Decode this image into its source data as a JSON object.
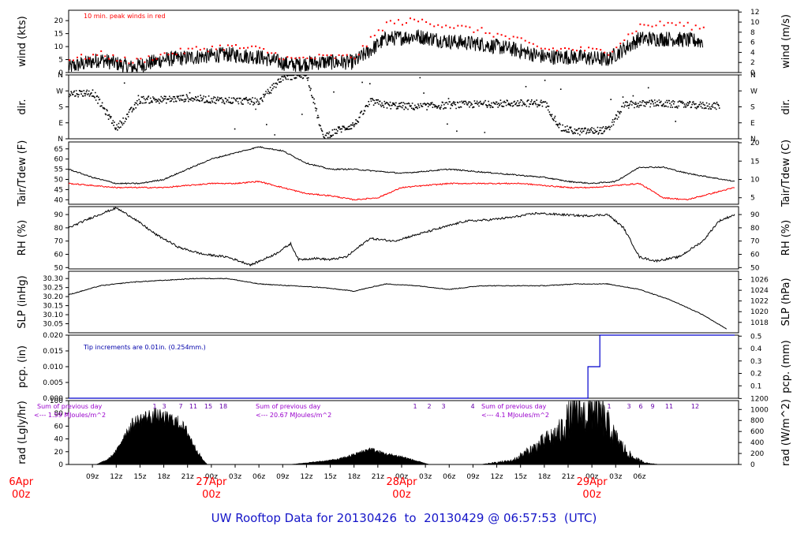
{
  "chart_data": [
    {
      "type": "line",
      "name": "wind",
      "ylabel_left": "wind (kts)",
      "ylabel_right": "wind (m/s)",
      "ylim_left": [
        0,
        24
      ],
      "ylim_right": [
        0,
        12.35
      ],
      "yticks_left": [
        0,
        5,
        10,
        15,
        20
      ],
      "yticks_right": [
        0,
        2,
        4,
        6,
        8,
        10,
        12
      ],
      "annotation": "10 min. peak winds in red",
      "series": [
        {
          "name": "wind speed (kts)",
          "color": "#000000",
          "x_hours": [
            0,
            4,
            8,
            12,
            16,
            20,
            24,
            28,
            32,
            36,
            40,
            44,
            48,
            52,
            56,
            60,
            64,
            68,
            72,
            76,
            80
          ],
          "values": [
            2,
            5,
            2,
            5,
            6,
            7,
            6,
            3,
            4,
            4,
            13,
            14,
            12,
            11,
            9,
            6,
            6,
            5,
            13,
            13,
            12
          ]
        },
        {
          "name": "10 min. peak winds",
          "color": "#ff0000",
          "x_hours": [
            0,
            4,
            8,
            12,
            16,
            20,
            24,
            28,
            32,
            36,
            40,
            44,
            48,
            52,
            56,
            60,
            64,
            68,
            72,
            76,
            80
          ],
          "values": [
            5,
            7,
            4,
            7,
            9,
            10,
            9,
            5,
            6,
            6,
            19,
            20,
            18,
            16,
            13,
            9,
            9,
            8,
            18,
            19,
            17
          ]
        }
      ]
    },
    {
      "type": "scatter",
      "name": "direction",
      "ylabel_left": "dir.",
      "ylabel_right": "dir.",
      "ylim": [
        0,
        360
      ],
      "yticks_left": [
        "N",
        "E",
        "S",
        "W",
        "N"
      ],
      "yticks_right": [
        "N",
        "E",
        "S",
        "W",
        "N"
      ],
      "series": [
        {
          "name": "wind direction (deg)",
          "color": "#000000",
          "x_hours": [
            0,
            3,
            6,
            9,
            12,
            15,
            18,
            21,
            24,
            27,
            30,
            32,
            34,
            36,
            38,
            40,
            44,
            48,
            52,
            56,
            60,
            62,
            64,
            66,
            68,
            70,
            74,
            78,
            82
          ],
          "values": [
            255,
            260,
            60,
            220,
            220,
            230,
            220,
            215,
            210,
            350,
            360,
            10,
            50,
            80,
            210,
            190,
            180,
            190,
            195,
            200,
            200,
            60,
            40,
            45,
            50,
            190,
            200,
            190,
            185
          ]
        }
      ]
    },
    {
      "type": "line",
      "name": "temperature",
      "ylabel_left": "Tair/Tdew (F)",
      "ylabel_right": "Tair/Tdew (C)",
      "ylim_left": [
        37.8,
        68.4
      ],
      "ylim_right": [
        3.222,
        20.222
      ],
      "yticks_left": [
        40,
        45,
        50,
        55,
        60,
        65
      ],
      "yticks_right": [
        5,
        10,
        15,
        20
      ],
      "series": [
        {
          "name": "Tair (F)",
          "color": "#000000",
          "x_hours": [
            0,
            3,
            6,
            9,
            12,
            15,
            18,
            21,
            24,
            27,
            30,
            33,
            36,
            39,
            42,
            45,
            48,
            51,
            54,
            57,
            60,
            63,
            66,
            69,
            72,
            75,
            78,
            81,
            84
          ],
          "values": [
            55,
            51,
            48,
            48,
            50,
            55,
            60,
            63,
            66,
            64,
            58,
            55,
            55,
            54,
            53,
            54,
            55,
            54,
            53,
            52,
            51,
            49,
            48,
            49,
            56,
            56,
            53,
            51,
            49
          ]
        },
        {
          "name": "Tdew (F)",
          "color": "#ff0000",
          "x_hours": [
            0,
            3,
            6,
            9,
            12,
            15,
            18,
            21,
            24,
            27,
            30,
            33,
            36,
            39,
            42,
            45,
            48,
            51,
            54,
            57,
            60,
            63,
            66,
            69,
            72,
            75,
            78,
            81,
            84
          ],
          "values": [
            48,
            47,
            46,
            46,
            46,
            47,
            48,
            48,
            49,
            46,
            43,
            42,
            40,
            41,
            46,
            47,
            48,
            48,
            48,
            48,
            47,
            46,
            46,
            47,
            48,
            41,
            40,
            43,
            46
          ]
        }
      ]
    },
    {
      "type": "line",
      "name": "rh",
      "ylabel_left": "RH (%)",
      "ylabel_right": "RH (%)",
      "ylim": [
        49,
        96
      ],
      "yticks_left": [
        50,
        60,
        70,
        80,
        90
      ],
      "yticks_right": [
        50,
        60,
        70,
        80,
        90
      ],
      "series": [
        {
          "name": "RH (%)",
          "color": "#000000",
          "x_hours": [
            0,
            3,
            6,
            8,
            11,
            14,
            17,
            20,
            23,
            26,
            28,
            29,
            31,
            33,
            35,
            38,
            41,
            44,
            47,
            50,
            53,
            56,
            59,
            62,
            65,
            68,
            70,
            72,
            74,
            77,
            80,
            82,
            84
          ],
          "values": [
            80,
            88,
            95,
            88,
            75,
            65,
            60,
            58,
            52,
            60,
            68,
            56,
            57,
            56,
            58,
            72,
            70,
            75,
            80,
            85,
            86,
            88,
            91,
            90,
            89,
            90,
            80,
            58,
            55,
            58,
            70,
            85,
            90
          ]
        }
      ]
    },
    {
      "type": "line",
      "name": "slp",
      "ylabel_left": "SLP (inHg)",
      "ylabel_right": "SLP (hPa)",
      "ylim_left": [
        30.0,
        30.34
      ],
      "ylim_right": [
        1016.05,
        1027.56
      ],
      "yticks_left": [
        30.05,
        30.1,
        30.15,
        30.2,
        30.25,
        30.3
      ],
      "yticks_right": [
        1018,
        1020,
        1022,
        1024,
        1026
      ],
      "series": [
        {
          "name": "SLP (inHg)",
          "color": "#000000",
          "x_hours": [
            0,
            4,
            8,
            12,
            16,
            20,
            24,
            28,
            32,
            36,
            40,
            44,
            48,
            52,
            56,
            60,
            64,
            68,
            72,
            76,
            80,
            83
          ],
          "values": [
            30.21,
            30.26,
            30.28,
            30.29,
            30.3,
            30.3,
            30.27,
            30.26,
            30.25,
            30.23,
            30.27,
            30.26,
            30.24,
            30.26,
            30.26,
            30.26,
            30.27,
            30.27,
            30.24,
            30.18,
            30.1,
            30.02
          ]
        }
      ]
    },
    {
      "type": "line",
      "name": "precip",
      "ylabel_left": "pcp. (in)",
      "ylabel_right": "pcp. (mm)",
      "ylim_left": [
        0,
        0.02
      ],
      "ylim_right": [
        0,
        0.508
      ],
      "yticks_left": [
        "0.000",
        "0.005",
        "0.010",
        "0.015",
        "0.020"
      ],
      "yticks_right": [
        0.1,
        0.2,
        0.3,
        0.4,
        0.5
      ],
      "annotation": "Tip increments are 0.01in. (0.254mm.)",
      "series": [
        {
          "name": "cumulative precipitation (in)",
          "color": "#0000cc",
          "x_hours": [
            0,
            65.5,
            65.5,
            67,
            67,
            84
          ],
          "values": [
            0,
            0,
            0.01,
            0.01,
            0.02,
            0.02
          ]
        }
      ]
    },
    {
      "type": "area",
      "name": "radiation",
      "ylabel_left": "rad (Lgly/hr)",
      "ylabel_right": "rad (W/m^2)",
      "ylim_left": [
        0,
        100
      ],
      "ylim_right": [
        0,
        1162
      ],
      "yticks_left": [
        0,
        20,
        40,
        60,
        80,
        100
      ],
      "yticks_right": [
        0,
        200,
        400,
        600,
        800,
        1000,
        1200
      ],
      "annotations": [
        {
          "text": "Sum of previous day",
          "day": 0
        },
        {
          "text": "<--- 1.59 MJoules/m^2",
          "day": 0
        },
        {
          "text": "Sum of previous day",
          "day": 1
        },
        {
          "text": "<--- 20.67 MJoules/m^2",
          "day": 1
        },
        {
          "text": "Sum of previous day",
          "day": 2
        },
        {
          "text": "<--- 4.1 MJoules/m^2",
          "day": 2
        }
      ],
      "hour_labels_day1": [
        "1",
        "3",
        "7",
        "11",
        "15",
        "18"
      ],
      "hour_labels_day2": [
        "1",
        "2",
        "3",
        "4"
      ],
      "hour_labels_day3": [
        "1",
        "3",
        "6",
        "9",
        "11",
        "12"
      ],
      "series": [
        {
          "name": "solar radiation (Lgly/hr)",
          "color": "#000000",
          "x_hours": [
            3.5,
            5,
            6,
            7,
            8,
            9,
            10,
            11,
            12,
            13,
            14,
            15,
            16,
            17,
            17.5,
            28,
            32,
            34,
            36,
            38,
            40,
            42,
            44,
            45.5,
            52,
            56,
            58,
            60,
            62,
            64,
            65,
            66,
            67,
            68,
            69,
            70,
            71,
            72,
            73,
            74.5
          ],
          "values": [
            0,
            8,
            20,
            45,
            62,
            70,
            74,
            76,
            72,
            70,
            64,
            50,
            25,
            6,
            0,
            0,
            5,
            8,
            15,
            24,
            16,
            12,
            5,
            0,
            0,
            6,
            20,
            35,
            50,
            90,
            75,
            90,
            80,
            60,
            40,
            25,
            12,
            6,
            2,
            0
          ]
        }
      ]
    }
  ],
  "x_axis": {
    "start": "26Apr 06z",
    "end": "29Apr 07z",
    "range_hours": [
      0,
      84.5
    ],
    "tick_labels": [
      "09z",
      "12z",
      "15z",
      "18z",
      "21z",
      "00z",
      "03z",
      "06z",
      "09z",
      "12z",
      "15z",
      "18z",
      "21z",
      "00z",
      "03z",
      "06z",
      "09z",
      "12z",
      "15z",
      "18z",
      "21z",
      "00z",
      "03z",
      "06z"
    ],
    "day_labels": [
      {
        "day": "6Apr",
        "hour": "00z"
      },
      {
        "day": "27Apr",
        "hour": "00z"
      },
      {
        "day": "28Apr",
        "hour": "00z"
      },
      {
        "day": "29Apr",
        "hour": "00z"
      }
    ]
  },
  "footer": {
    "title": "UW Rooftop Data for 20130426  to  20130429 @ 06:57:53  (UTC)"
  }
}
